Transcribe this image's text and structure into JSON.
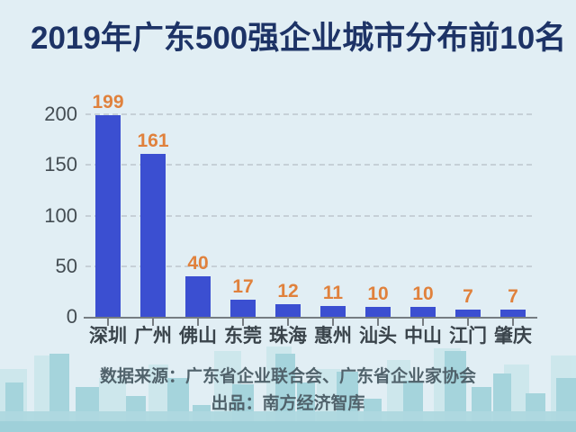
{
  "title": "2019年广东500强企业城市分布前10名",
  "chart_data": {
    "type": "bar",
    "title": "2019年广东500强企业城市分布前10名",
    "categories": [
      "深圳",
      "广州",
      "佛山",
      "东莞",
      "珠海",
      "惠州",
      "汕头",
      "中山",
      "江门",
      "肇庆"
    ],
    "values": [
      199,
      161,
      40,
      17,
      12,
      11,
      10,
      10,
      7,
      7
    ],
    "xlabel": "",
    "ylabel": "",
    "ylim": [
      0,
      200
    ],
    "yticks": [
      0,
      50,
      100,
      150,
      200
    ],
    "grid": "horizontal-dashed",
    "legend": "none",
    "value_labels": "above-bars"
  },
  "footer": {
    "source": "数据来源：广东省企业联合会、广东省企业家协会",
    "producer": "出品：南方经济智库"
  },
  "colors": {
    "background": "#e1eef4",
    "title_text": "#1d3366",
    "bar": "#3b4fd1",
    "value_label": "#e0813c",
    "axis_text": "#444d53",
    "category_text": "#3a444b",
    "gridline": "#c6d0d7",
    "axis_line": "#767d82",
    "footer_text": "#50626b",
    "skyline": "#a5d4dc"
  }
}
